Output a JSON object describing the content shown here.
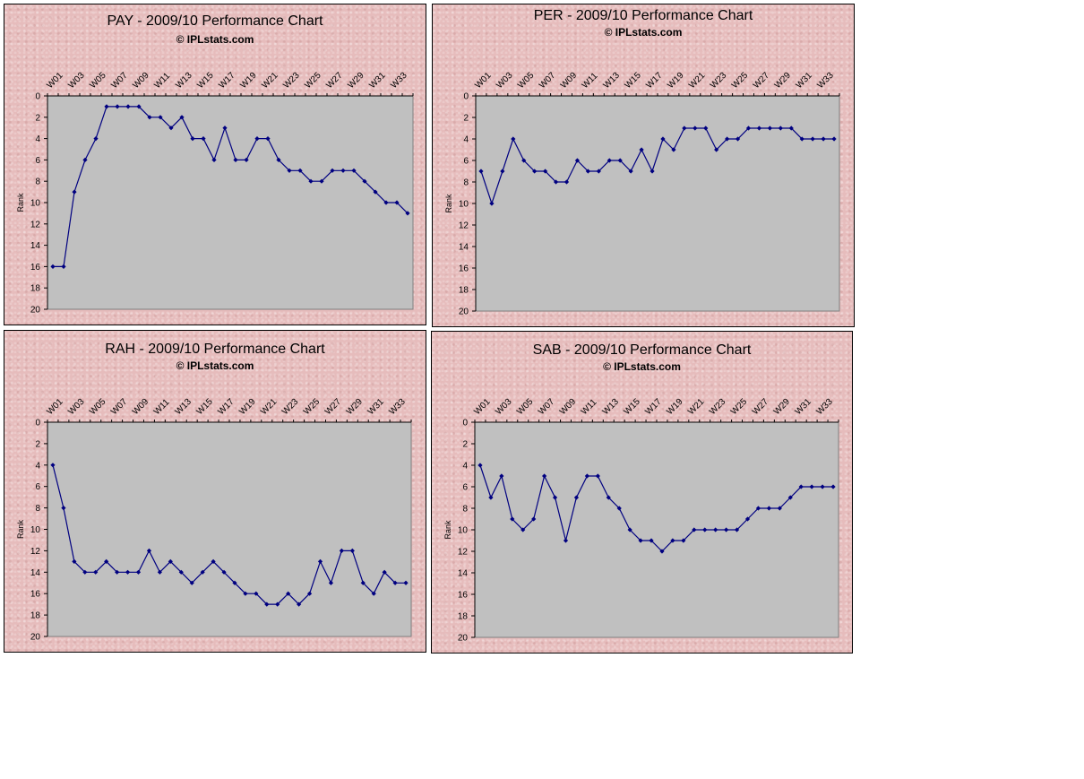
{
  "chart_data": [
    {
      "type": "line",
      "title": "PAY - 2009/10 Performance Chart",
      "subtitle": "© IPLstats.com",
      "ylabel": "Rank",
      "ylim": [
        20,
        0
      ],
      "ytick_step": 2,
      "x_tick_labels": [
        "W01",
        "W03",
        "W05",
        "W07",
        "W09",
        "W11",
        "W13",
        "W15",
        "W17",
        "W19",
        "W21",
        "W23",
        "W25",
        "W27",
        "W29",
        "W31",
        "W33"
      ],
      "values": [
        16,
        16,
        9,
        6,
        4,
        1,
        1,
        1,
        1,
        2,
        2,
        3,
        2,
        4,
        4,
        6,
        3,
        6,
        6,
        4,
        4,
        6,
        7,
        7,
        8,
        8,
        7,
        7,
        7,
        8,
        9,
        10,
        10,
        11
      ]
    },
    {
      "type": "line",
      "title": "PER - 2009/10 Performance Chart",
      "subtitle": "© IPLstats.com",
      "ylabel": "Rank",
      "ylim": [
        20,
        0
      ],
      "ytick_step": 2,
      "x_tick_labels": [
        "W01",
        "W03",
        "W05",
        "W07",
        "W09",
        "W11",
        "W13",
        "W15",
        "W17",
        "W19",
        "W21",
        "W23",
        "W25",
        "W27",
        "W29",
        "W31",
        "W33"
      ],
      "values": [
        7,
        10,
        7,
        4,
        6,
        7,
        7,
        8,
        8,
        6,
        7,
        7,
        6,
        6,
        7,
        5,
        7,
        4,
        5,
        3,
        3,
        3,
        5,
        4,
        4,
        3,
        3,
        3,
        3,
        3,
        4,
        4,
        4,
        4
      ]
    },
    {
      "type": "line",
      "title": "RAH - 2009/10 Performance Chart",
      "subtitle": "© IPLstats.com",
      "ylabel": "Rank",
      "ylim": [
        20,
        0
      ],
      "ytick_step": 2,
      "x_tick_labels": [
        "W01",
        "W03",
        "W05",
        "W07",
        "W09",
        "W11",
        "W13",
        "W15",
        "W17",
        "W19",
        "W21",
        "W23",
        "W25",
        "W27",
        "W29",
        "W31",
        "W33"
      ],
      "values": [
        4,
        8,
        13,
        14,
        14,
        13,
        14,
        14,
        14,
        12,
        14,
        13,
        14,
        15,
        14,
        13,
        14,
        15,
        16,
        16,
        17,
        17,
        16,
        17,
        16,
        13,
        15,
        12,
        12,
        15,
        16,
        14,
        15,
        15
      ]
    },
    {
      "type": "line",
      "title": "SAB - 2009/10 Performance Chart",
      "subtitle": "© IPLstats.com",
      "ylabel": "Rank",
      "ylim": [
        20,
        0
      ],
      "ytick_step": 2,
      "x_tick_labels": [
        "W01",
        "W03",
        "W05",
        "W07",
        "W09",
        "W11",
        "W13",
        "W15",
        "W17",
        "W19",
        "W21",
        "W23",
        "W25",
        "W27",
        "W29",
        "W31",
        "W33"
      ],
      "values": [
        4,
        7,
        5,
        9,
        10,
        9,
        5,
        7,
        11,
        7,
        5,
        5,
        7,
        8,
        10,
        11,
        11,
        12,
        11,
        11,
        10,
        10,
        10,
        10,
        10,
        9,
        8,
        8,
        8,
        7,
        6,
        6,
        6,
        6
      ]
    }
  ],
  "colors": {
    "plot_background": "#c0c0c0",
    "series_line": "#000080",
    "panel_background": "#e6bcbc"
  }
}
